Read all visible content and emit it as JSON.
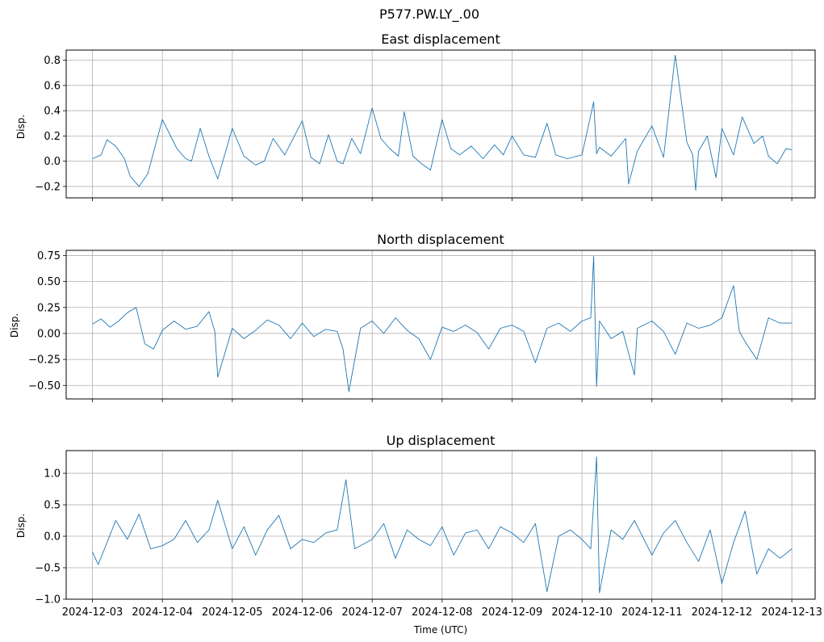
{
  "suptitle": "P577.PW.LY_.00",
  "colors": {
    "trace": "#1f77b4",
    "grid": "#b0b0b0"
  },
  "x_ticks": [
    "2024-12-03",
    "2024-12-04",
    "2024-12-05",
    "2024-12-06",
    "2024-12-07",
    "2024-12-08",
    "2024-12-09",
    "2024-12-10",
    "2024-12-11",
    "2024-12-12",
    "2024-12-13"
  ],
  "x_label": "Time (UTC)",
  "chart_data": [
    {
      "type": "line",
      "title": "East displacement",
      "ylabel": "Disp.",
      "xlim": [
        "2024-12-02T15:00",
        "2024-12-13T08:00"
      ],
      "ylim": [
        -0.29,
        0.88
      ],
      "yticks": [
        -0.2,
        0.0,
        0.2,
        0.4,
        0.6,
        0.8
      ],
      "ytick_labels": [
        "−0.2",
        "0.0",
        "0.2",
        "0.4",
        "0.6",
        "0.8"
      ],
      "grid": true,
      "series": [
        {
          "x": [
            "2024-12-03T00:00",
            "2024-12-03T03:00",
            "2024-12-03T05:00",
            "2024-12-03T08:00",
            "2024-12-03T11:00",
            "2024-12-03T13:00",
            "2024-12-03T16:00",
            "2024-12-03T19:00",
            "2024-12-04T00:00",
            "2024-12-04T05:00",
            "2024-12-04T08:00",
            "2024-12-04T10:00",
            "2024-12-04T13:00",
            "2024-12-04T16:00",
            "2024-12-04T19:00",
            "2024-12-05T00:00",
            "2024-12-05T04:00",
            "2024-12-05T08:00",
            "2024-12-05T11:00",
            "2024-12-05T14:00",
            "2024-12-05T18:00",
            "2024-12-06T00:00",
            "2024-12-06T03:00",
            "2024-12-06T06:00",
            "2024-12-06T09:00",
            "2024-12-06T12:00",
            "2024-12-06T14:00",
            "2024-12-06T17:00",
            "2024-12-06T20:00",
            "2024-12-07T00:00",
            "2024-12-07T03:00",
            "2024-12-07T06:00",
            "2024-12-07T09:00",
            "2024-12-07T11:00",
            "2024-12-07T14:00",
            "2024-12-07T17:00",
            "2024-12-07T20:00",
            "2024-12-08T00:00",
            "2024-12-08T03:00",
            "2024-12-08T06:00",
            "2024-12-08T10:00",
            "2024-12-08T14:00",
            "2024-12-08T18:00",
            "2024-12-08T21:00",
            "2024-12-09T00:00",
            "2024-12-09T04:00",
            "2024-12-09T08:00",
            "2024-12-09T12:00",
            "2024-12-09T15:00",
            "2024-12-09T19:00",
            "2024-12-10T00:00",
            "2024-12-10T04:00",
            "2024-12-10T05:00",
            "2024-12-10T06:00",
            "2024-12-10T10:00",
            "2024-12-10T15:00",
            "2024-12-10T16:00",
            "2024-12-10T19:00",
            "2024-12-11T00:00",
            "2024-12-11T04:00",
            "2024-12-11T08:00",
            "2024-12-11T12:00",
            "2024-12-11T14:00",
            "2024-12-11T15:00",
            "2024-12-11T16:00",
            "2024-12-11T19:00",
            "2024-12-11T22:00",
            "2024-12-12T00:00",
            "2024-12-12T04:00",
            "2024-12-12T07:00",
            "2024-12-12T11:00",
            "2024-12-12T14:00",
            "2024-12-12T16:00",
            "2024-12-12T19:00",
            "2024-12-12T22:00",
            "2024-12-13T00:00"
          ],
          "y": [
            0.02,
            0.05,
            0.17,
            0.12,
            0.02,
            -0.12,
            -0.2,
            -0.1,
            0.33,
            0.1,
            0.02,
            0.0,
            0.26,
            0.04,
            -0.14,
            0.26,
            0.04,
            -0.03,
            0.0,
            0.18,
            0.05,
            0.32,
            0.03,
            -0.02,
            0.21,
            0.0,
            -0.02,
            0.18,
            0.06,
            0.42,
            0.18,
            0.1,
            0.04,
            0.39,
            0.04,
            -0.02,
            -0.07,
            0.33,
            0.1,
            0.05,
            0.12,
            0.02,
            0.13,
            0.05,
            0.2,
            0.05,
            0.03,
            0.3,
            0.05,
            0.02,
            0.05,
            0.47,
            0.06,
            0.11,
            0.04,
            0.18,
            -0.18,
            0.08,
            0.28,
            0.03,
            0.84,
            0.15,
            0.05,
            -0.23,
            0.08,
            0.2,
            -0.13,
            0.26,
            0.05,
            0.35,
            0.14,
            0.2,
            0.04,
            -0.02,
            0.1,
            0.09
          ]
        }
      ]
    },
    {
      "type": "line",
      "title": "North displacement",
      "ylabel": "Disp.",
      "xlim": [
        "2024-12-02T15:00",
        "2024-12-13T08:00"
      ],
      "ylim": [
        -0.63,
        0.8
      ],
      "yticks": [
        -0.5,
        -0.25,
        0.0,
        0.25,
        0.5,
        0.75
      ],
      "ytick_labels": [
        "−0.50",
        "−0.25",
        "0.00",
        "0.25",
        "0.50",
        "0.75"
      ],
      "grid": true,
      "series": [
        {
          "x": [
            "2024-12-03T00:00",
            "2024-12-03T03:00",
            "2024-12-03T06:00",
            "2024-12-03T09:00",
            "2024-12-03T12:00",
            "2024-12-03T15:00",
            "2024-12-03T18:00",
            "2024-12-03T21:00",
            "2024-12-04T00:00",
            "2024-12-04T04:00",
            "2024-12-04T08:00",
            "2024-12-04T12:00",
            "2024-12-04T16:00",
            "2024-12-04T18:00",
            "2024-12-04T19:00",
            "2024-12-05T00:00",
            "2024-12-05T04:00",
            "2024-12-05T08:00",
            "2024-12-05T12:00",
            "2024-12-05T16:00",
            "2024-12-05T20:00",
            "2024-12-06T00:00",
            "2024-12-06T04:00",
            "2024-12-06T08:00",
            "2024-12-06T12:00",
            "2024-12-06T14:00",
            "2024-12-06T16:00",
            "2024-12-06T20:00",
            "2024-12-07T00:00",
            "2024-12-07T04:00",
            "2024-12-07T08:00",
            "2024-12-07T12:00",
            "2024-12-07T16:00",
            "2024-12-07T20:00",
            "2024-12-08T00:00",
            "2024-12-08T04:00",
            "2024-12-08T08:00",
            "2024-12-08T12:00",
            "2024-12-08T16:00",
            "2024-12-08T20:00",
            "2024-12-09T00:00",
            "2024-12-09T04:00",
            "2024-12-09T08:00",
            "2024-12-09T12:00",
            "2024-12-09T16:00",
            "2024-12-09T20:00",
            "2024-12-10T00:00",
            "2024-12-10T03:00",
            "2024-12-10T04:00",
            "2024-12-10T05:00",
            "2024-12-10T06:00",
            "2024-12-10T10:00",
            "2024-12-10T14:00",
            "2024-12-10T18:00",
            "2024-12-10T19:00",
            "2024-12-11T00:00",
            "2024-12-11T04:00",
            "2024-12-11T08:00",
            "2024-12-11T12:00",
            "2024-12-11T16:00",
            "2024-12-11T20:00",
            "2024-12-12T00:00",
            "2024-12-12T04:00",
            "2024-12-12T06:00",
            "2024-12-12T08:00",
            "2024-12-12T12:00",
            "2024-12-12T16:00",
            "2024-12-12T20:00",
            "2024-12-13T00:00"
          ],
          "y": [
            0.09,
            0.14,
            0.06,
            0.12,
            0.2,
            0.25,
            -0.1,
            -0.15,
            0.03,
            0.12,
            0.04,
            0.07,
            0.21,
            0.02,
            -0.42,
            0.05,
            -0.05,
            0.03,
            0.13,
            0.08,
            -0.05,
            0.1,
            -0.03,
            0.04,
            0.02,
            -0.15,
            -0.56,
            0.05,
            0.12,
            0.0,
            0.15,
            0.03,
            -0.05,
            -0.25,
            0.06,
            0.02,
            0.08,
            0.01,
            -0.15,
            0.05,
            0.08,
            0.02,
            -0.28,
            0.05,
            0.1,
            0.02,
            0.12,
            0.15,
            0.74,
            -0.51,
            0.12,
            -0.05,
            0.02,
            -0.4,
            0.05,
            0.12,
            0.02,
            -0.2,
            0.1,
            0.05,
            0.08,
            0.15,
            0.46,
            0.02,
            -0.08,
            -0.25,
            0.15,
            0.1,
            0.1
          ]
        }
      ]
    },
    {
      "type": "line",
      "title": "Up displacement",
      "ylabel": "Disp.",
      "xlim": [
        "2024-12-02T15:00",
        "2024-12-13T08:00"
      ],
      "ylim": [
        -1.0,
        1.36
      ],
      "yticks": [
        -1.0,
        -0.5,
        0.0,
        0.5,
        1.0
      ],
      "ytick_labels": [
        "−1.0",
        "−0.5",
        "0.0",
        "0.5",
        "1.0"
      ],
      "grid": true,
      "series": [
        {
          "x": [
            "2024-12-03T00:00",
            "2024-12-03T02:00",
            "2024-12-03T05:00",
            "2024-12-03T08:00",
            "2024-12-03T12:00",
            "2024-12-03T16:00",
            "2024-12-03T20:00",
            "2024-12-04T00:00",
            "2024-12-04T04:00",
            "2024-12-04T08:00",
            "2024-12-04T12:00",
            "2024-12-04T16:00",
            "2024-12-04T19:00",
            "2024-12-05T00:00",
            "2024-12-05T04:00",
            "2024-12-05T08:00",
            "2024-12-05T12:00",
            "2024-12-05T16:00",
            "2024-12-05T20:00",
            "2024-12-06T00:00",
            "2024-12-06T04:00",
            "2024-12-06T08:00",
            "2024-12-06T12:00",
            "2024-12-06T15:00",
            "2024-12-06T18:00",
            "2024-12-07T00:00",
            "2024-12-07T04:00",
            "2024-12-07T08:00",
            "2024-12-07T12:00",
            "2024-12-07T16:00",
            "2024-12-07T20:00",
            "2024-12-08T00:00",
            "2024-12-08T04:00",
            "2024-12-08T08:00",
            "2024-12-08T12:00",
            "2024-12-08T16:00",
            "2024-12-08T20:00",
            "2024-12-09T00:00",
            "2024-12-09T04:00",
            "2024-12-09T08:00",
            "2024-12-09T12:00",
            "2024-12-09T16:00",
            "2024-12-09T20:00",
            "2024-12-10T00:00",
            "2024-12-10T03:00",
            "2024-12-10T05:00",
            "2024-12-10T06:00",
            "2024-12-10T10:00",
            "2024-12-10T14:00",
            "2024-12-10T18:00",
            "2024-12-11T00:00",
            "2024-12-11T04:00",
            "2024-12-11T08:00",
            "2024-12-11T12:00",
            "2024-12-11T16:00",
            "2024-12-11T20:00",
            "2024-12-12T00:00",
            "2024-12-12T04:00",
            "2024-12-12T08:00",
            "2024-12-12T12:00",
            "2024-12-12T16:00",
            "2024-12-12T20:00",
            "2024-12-13T00:00"
          ],
          "y": [
            -0.25,
            -0.45,
            -0.1,
            0.25,
            -0.05,
            0.35,
            -0.2,
            -0.15,
            -0.05,
            0.25,
            -0.1,
            0.1,
            0.57,
            -0.2,
            0.15,
            -0.3,
            0.1,
            0.33,
            -0.2,
            -0.05,
            -0.1,
            0.05,
            0.1,
            0.9,
            -0.2,
            -0.05,
            0.2,
            -0.35,
            0.1,
            -0.05,
            -0.15,
            0.15,
            -0.3,
            0.05,
            0.1,
            -0.2,
            0.15,
            0.05,
            -0.1,
            0.2,
            -0.88,
            0.0,
            0.1,
            -0.05,
            -0.2,
            1.26,
            -0.9,
            0.1,
            -0.05,
            0.25,
            -0.3,
            0.05,
            0.25,
            -0.1,
            -0.4,
            0.1,
            -0.75,
            -0.1,
            0.4,
            -0.6,
            -0.2,
            -0.35,
            -0.2
          ]
        }
      ]
    }
  ]
}
